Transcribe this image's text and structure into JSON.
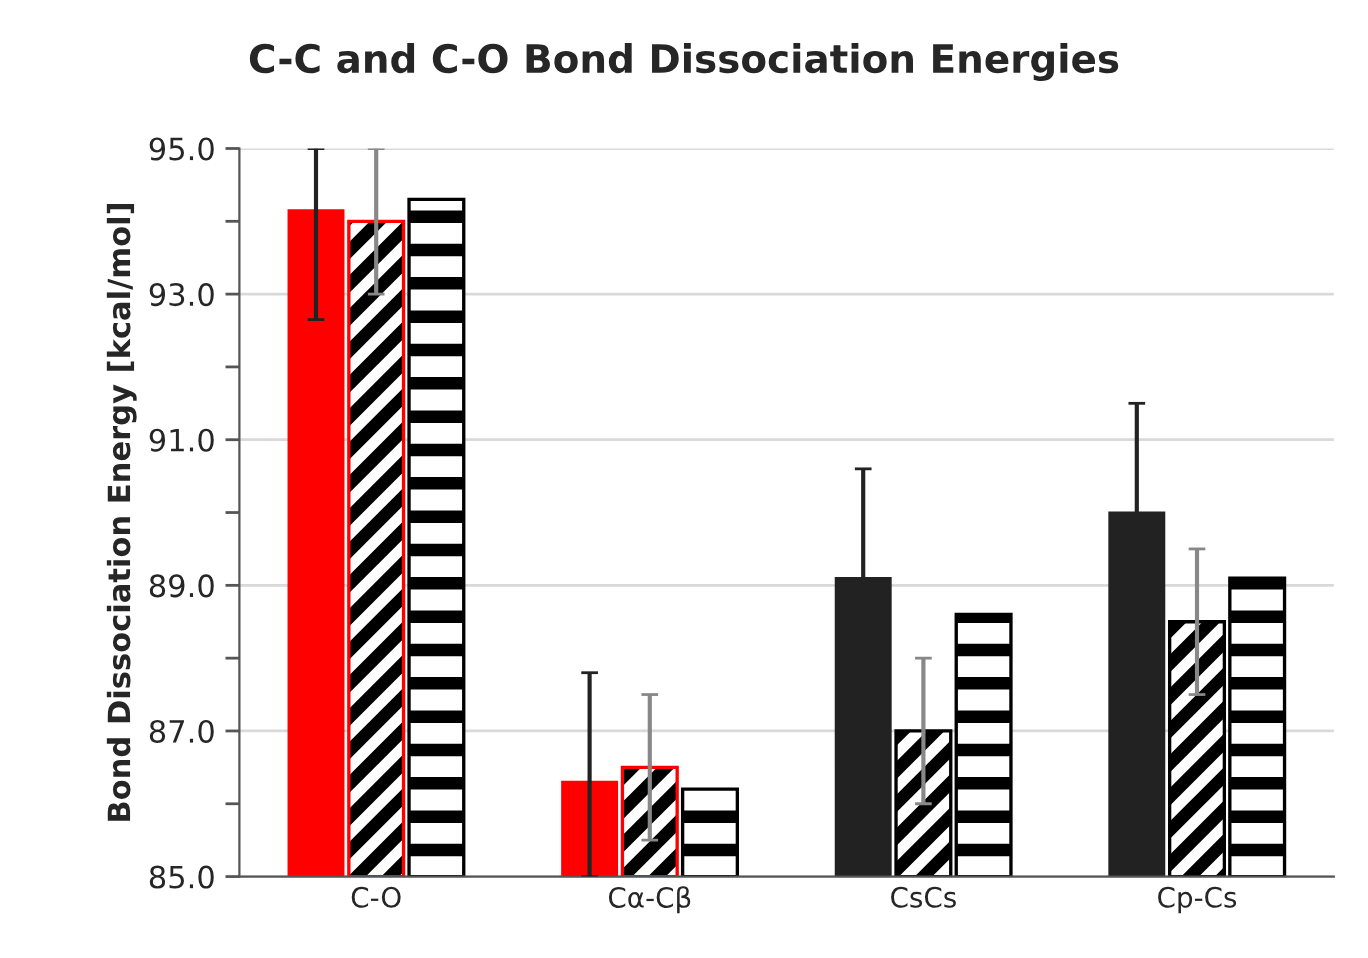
{
  "chart_data": {
    "type": "bar",
    "title": "C-C and C-O Bond Dissociation Energies",
    "ylabel": "Bond Dissociation Energy [kcal/mol]",
    "categories": [
      "C-O",
      "Cα-Cβ",
      "CsCs",
      "Cp-Cs"
    ],
    "series": [
      {
        "colors": [
          "#ff0000",
          "#ff0000",
          "#222222",
          "#222222"
        ],
        "values": [
          94.15,
          86.3,
          89.1,
          90.0
        ],
        "errors": [
          [
            92.65,
            95.0
          ],
          [
            85.0,
            87.8
          ],
          1.5,
          1.5
        ]
      },
      {
        "colors": [
          "#ff0000",
          "#ff0000",
          "#000000",
          "#000000"
        ],
        "values": [
          94.0,
          86.5,
          87.0,
          88.5
        ],
        "errors": [
          1.0,
          1.0,
          1.0,
          1.0
        ]
      },
      {
        "color": "#000000",
        "values": [
          94.3,
          86.2,
          88.6,
          89.1
        ]
      }
    ],
    "ylim": [
      85,
      95
    ],
    "yticks": [
      {
        "value": 85,
        "label": "85.0"
      },
      {
        "value": 86,
        "label": null
      },
      {
        "value": 87,
        "label": "87.0"
      },
      {
        "value": 88,
        "label": null
      },
      {
        "value": 89,
        "label": "89.0"
      },
      {
        "value": 90,
        "label": null
      },
      {
        "value": 91,
        "label": "91.0"
      },
      {
        "value": 92,
        "label": null
      },
      {
        "value": 93,
        "label": "93.0"
      },
      {
        "value": 94,
        "label": null
      },
      {
        "value": 95,
        "label": "95.0"
      }
    ],
    "grid": "y",
    "legend": false
  }
}
